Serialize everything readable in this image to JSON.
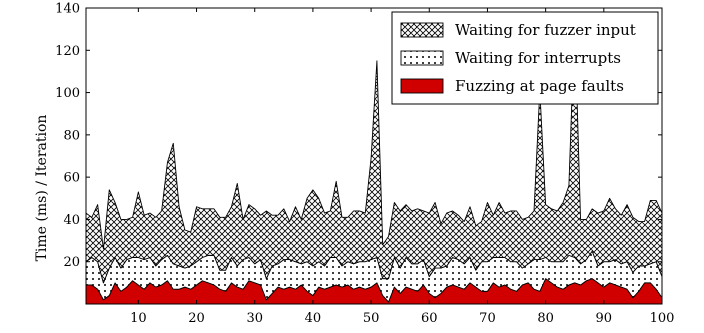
{
  "chart_data": {
    "type": "area",
    "stacked": true,
    "xlabel": "",
    "ylabel": "Time (ms) / Iteration",
    "xlim": [
      1,
      100
    ],
    "ylim": [
      0,
      140
    ],
    "xticks": [
      10,
      20,
      30,
      40,
      50,
      60,
      70,
      80,
      90,
      100
    ],
    "yticks": [
      20,
      40,
      60,
      80,
      100,
      120,
      140
    ],
    "grid": false,
    "legend_position": "top-right",
    "legend_order": [
      2,
      1,
      0
    ],
    "x": [
      1,
      2,
      3,
      4,
      5,
      6,
      7,
      8,
      9,
      10,
      11,
      12,
      13,
      14,
      15,
      16,
      17,
      18,
      19,
      20,
      21,
      22,
      23,
      24,
      25,
      26,
      27,
      28,
      29,
      30,
      31,
      32,
      33,
      34,
      35,
      36,
      37,
      38,
      39,
      40,
      41,
      42,
      43,
      44,
      45,
      46,
      47,
      48,
      49,
      50,
      51,
      52,
      53,
      54,
      55,
      56,
      57,
      58,
      59,
      60,
      61,
      62,
      63,
      64,
      65,
      66,
      67,
      68,
      69,
      70,
      71,
      72,
      73,
      74,
      75,
      76,
      77,
      78,
      79,
      80,
      81,
      82,
      83,
      84,
      85,
      86,
      87,
      88,
      89,
      90,
      91,
      92,
      93,
      94,
      95,
      96,
      97,
      98,
      99,
      100
    ],
    "series": [
      {
        "name": "Fuzzing at page faults",
        "pattern": "solid",
        "color": "#d00000",
        "values": [
          9,
          9,
          7,
          2,
          4,
          10,
          6,
          8,
          11,
          9,
          7,
          10,
          8,
          9,
          11,
          7,
          7,
          8,
          7,
          9,
          11,
          10,
          9,
          7,
          6,
          10,
          8,
          7,
          11,
          10,
          9,
          2,
          5,
          8,
          7,
          8,
          7,
          9,
          6,
          4,
          8,
          7,
          8,
          9,
          8,
          9,
          7,
          8,
          7,
          8,
          10,
          4,
          1,
          8,
          5,
          8,
          7,
          6,
          9,
          5,
          3,
          5,
          8,
          9,
          8,
          7,
          10,
          8,
          6,
          6,
          10,
          8,
          9,
          7,
          6,
          9,
          10,
          7,
          6,
          12,
          10,
          8,
          7,
          9,
          10,
          9,
          11,
          12,
          10,
          8,
          10,
          9,
          8,
          7,
          3,
          6,
          10,
          10,
          7,
          3
        ]
      },
      {
        "name": "Waiting for interrupts",
        "pattern": "dots",
        "color": "#000000",
        "values": [
          11,
          13,
          13,
          8,
          13,
          12,
          11,
          13,
          11,
          13,
          14,
          12,
          10,
          12,
          12,
          12,
          11,
          9,
          11,
          11,
          11,
          13,
          14,
          9,
          10,
          12,
          10,
          14,
          11,
          9,
          12,
          10,
          13,
          11,
          14,
          13,
          13,
          10,
          14,
          14,
          12,
          11,
          14,
          13,
          10,
          11,
          12,
          12,
          13,
          13,
          12,
          8,
          11,
          14,
          12,
          14,
          12,
          13,
          12,
          8,
          14,
          12,
          10,
          13,
          13,
          12,
          12,
          8,
          14,
          14,
          12,
          14,
          13,
          13,
          14,
          8,
          9,
          14,
          15,
          10,
          10,
          12,
          13,
          14,
          12,
          10,
          10,
          13,
          8,
          12,
          10,
          12,
          11,
          13,
          12,
          12,
          8,
          9,
          13,
          10
        ]
      },
      {
        "name": "Waiting for fuzzer input",
        "pattern": "crosshatch",
        "color": "#000000",
        "values": [
          23,
          19,
          27,
          16,
          37,
          26,
          23,
          19,
          19,
          31,
          21,
          21,
          23,
          23,
          44,
          57,
          28,
          18,
          16,
          26,
          23,
          22,
          22,
          25,
          25,
          24,
          39,
          19,
          25,
          26,
          21,
          32,
          24,
          23,
          24,
          18,
          26,
          21,
          30,
          36,
          30,
          25,
          22,
          36,
          23,
          21,
          25,
          24,
          23,
          48,
          93,
          16,
          20,
          26,
          27,
          25,
          25,
          26,
          23,
          30,
          31,
          21,
          25,
          22,
          21,
          20,
          24,
          21,
          19,
          28,
          20,
          26,
          21,
          24,
          24,
          23,
          22,
          23,
          80,
          25,
          25,
          24,
          28,
          33,
          113,
          21,
          19,
          20,
          25,
          24,
          30,
          24,
          23,
          27,
          26,
          21,
          21,
          30,
          29,
          30
        ]
      }
    ]
  }
}
